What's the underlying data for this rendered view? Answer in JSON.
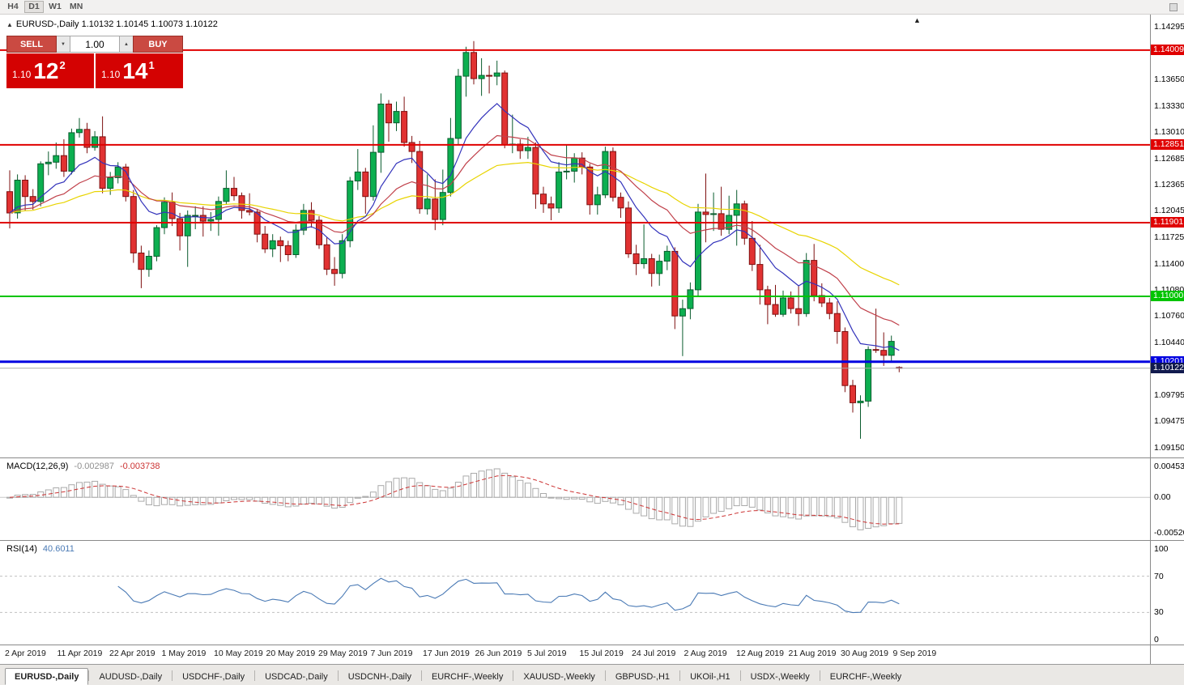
{
  "toolbar": {
    "timeframes": [
      {
        "label": "H4",
        "active": false
      },
      {
        "label": "D1",
        "active": true
      },
      {
        "label": "W1",
        "active": false
      },
      {
        "label": "MN",
        "active": false
      }
    ]
  },
  "chart": {
    "collapse_marker": "▲",
    "symbol": "EURUSD-,Daily",
    "ohlc_text": "1.10132 1.10145 1.10073 1.10122",
    "shift_marker": "▲"
  },
  "trade_panel": {
    "sell_label": "SELL",
    "buy_label": "BUY",
    "volume": "1.00",
    "spin_up": "▲",
    "spin_down": "▼",
    "bid": {
      "prefix": "1.10",
      "big": "12",
      "sup": "2"
    },
    "ask": {
      "prefix": "1.10",
      "big": "14",
      "sup": "1"
    }
  },
  "chart_data": {
    "type": "candlestick",
    "symbol": "EURUSD",
    "timeframe": "Daily",
    "ohlc_current": {
      "open": 1.10132,
      "high": 1.10145,
      "low": 1.10073,
      "close": 1.10122
    },
    "price_axis": {
      "max": 1.14295,
      "min": 1.0915,
      "ticks": [
        1.14295,
        1.1365,
        1.1333,
        1.1301,
        1.12685,
        1.12365,
        1.12045,
        1.11725,
        1.114,
        1.1108,
        1.1076,
        1.1044,
        1.09795,
        1.09475,
        1.0915
      ]
    },
    "colors": {
      "bull": "#0caf50",
      "bear": "#e13232",
      "bull_border": "#0a5c2e",
      "bear_border": "#7e1010",
      "background": "#ffffff"
    },
    "levels": [
      {
        "price": 1.14009,
        "label": "1.14009",
        "color": "#e00000",
        "width": 2
      },
      {
        "price": 1.12851,
        "label": "1.12851",
        "color": "#e00000",
        "width": 2
      },
      {
        "price": 1.11901,
        "label": "1.11901",
        "color": "#e00000",
        "width": 2
      },
      {
        "price": 1.11,
        "label": "1.11000",
        "color": "#00c400",
        "width": 2
      },
      {
        "price": 1.10201,
        "label": "1.10201",
        "color": "#0000e0",
        "width": 3
      }
    ],
    "current_price": {
      "value": 1.10122,
      "label": "1.10122",
      "line_color": "#a8a8a8",
      "tag_color": "#111a4e"
    },
    "moving_averages": [
      {
        "name": "ma-slow",
        "period": 44,
        "color": "#e8d400"
      },
      {
        "name": "ma-mid",
        "period": 21,
        "color": "#c0404a"
      },
      {
        "name": "ma-fast",
        "period": 10,
        "color": "#3333bb"
      }
    ],
    "x_labels": [
      "2 Apr 2019",
      "11 Apr 2019",
      "22 Apr 2019",
      "1 May 2019",
      "10 May 2019",
      "20 May 2019",
      "29 May 2019",
      "7 Jun 2019",
      "17 Jun 2019",
      "26 Jun 2019",
      "5 Jul 2019",
      "15 Jul 2019",
      "24 Jul 2019",
      "2 Aug 2019",
      "12 Aug 2019",
      "21 Aug 2019",
      "30 Aug 2019",
      "9 Sep 2019"
    ],
    "candles": [
      [
        1.1228,
        1.1254,
        1.1183,
        1.1202
      ],
      [
        1.1202,
        1.1249,
        1.1195,
        1.1242
      ],
      [
        1.1242,
        1.1248,
        1.1205,
        1.1222
      ],
      [
        1.1222,
        1.1231,
        1.1206,
        1.1216
      ],
      [
        1.1216,
        1.1265,
        1.121,
        1.1262
      ],
      [
        1.1262,
        1.1277,
        1.1248,
        1.1264
      ],
      [
        1.1264,
        1.1288,
        1.1256,
        1.1272
      ],
      [
        1.1272,
        1.1292,
        1.1246,
        1.1253
      ],
      [
        1.1253,
        1.1305,
        1.1249,
        1.13
      ],
      [
        1.13,
        1.1318,
        1.1294,
        1.1304
      ],
      [
        1.1304,
        1.1312,
        1.1275,
        1.1282
      ],
      [
        1.1282,
        1.1302,
        1.1278,
        1.1295
      ],
      [
        1.1295,
        1.132,
        1.1226,
        1.1232
      ],
      [
        1.1232,
        1.1252,
        1.1224,
        1.1245
      ],
      [
        1.1245,
        1.1264,
        1.1238,
        1.1258
      ],
      [
        1.1258,
        1.1262,
        1.1216,
        1.1222
      ],
      [
        1.1222,
        1.123,
        1.1141,
        1.1153
      ],
      [
        1.1153,
        1.1162,
        1.111,
        1.1133
      ],
      [
        1.1133,
        1.1156,
        1.1124,
        1.1149
      ],
      [
        1.1149,
        1.1187,
        1.1143,
        1.1184
      ],
      [
        1.1184,
        1.1221,
        1.1176,
        1.1215
      ],
      [
        1.1215,
        1.1227,
        1.1186,
        1.1195
      ],
      [
        1.1195,
        1.1202,
        1.1156,
        1.1174
      ],
      [
        1.1174,
        1.1205,
        1.1136,
        1.1199
      ],
      [
        1.1199,
        1.121,
        1.1182,
        1.1199
      ],
      [
        1.1199,
        1.121,
        1.1173,
        1.1192
      ],
      [
        1.1192,
        1.1203,
        1.118,
        1.1194
      ],
      [
        1.1194,
        1.1222,
        1.1174,
        1.1216
      ],
      [
        1.1216,
        1.1254,
        1.1212,
        1.1232
      ],
      [
        1.1232,
        1.1246,
        1.1217,
        1.1223
      ],
      [
        1.1223,
        1.1227,
        1.1195,
        1.1205
      ],
      [
        1.1205,
        1.1226,
        1.1199,
        1.1203
      ],
      [
        1.1203,
        1.1207,
        1.1166,
        1.1176
      ],
      [
        1.1176,
        1.1186,
        1.1153,
        1.1158
      ],
      [
        1.1158,
        1.1176,
        1.1148,
        1.1168
      ],
      [
        1.1168,
        1.1173,
        1.1142,
        1.1162
      ],
      [
        1.1162,
        1.1168,
        1.1143,
        1.1151
      ],
      [
        1.1151,
        1.1188,
        1.1147,
        1.1181
      ],
      [
        1.1181,
        1.1213,
        1.1175,
        1.1205
      ],
      [
        1.1205,
        1.1215,
        1.1184,
        1.1193
      ],
      [
        1.1193,
        1.1198,
        1.1158,
        1.1163
      ],
      [
        1.1163,
        1.1172,
        1.1126,
        1.1133
      ],
      [
        1.1133,
        1.1148,
        1.1113,
        1.1128
      ],
      [
        1.1128,
        1.1176,
        1.1122,
        1.1168
      ],
      [
        1.1168,
        1.1246,
        1.116,
        1.1241
      ],
      [
        1.1241,
        1.128,
        1.123,
        1.1252
      ],
      [
        1.1252,
        1.1257,
        1.1201,
        1.1222
      ],
      [
        1.1222,
        1.1309,
        1.1217,
        1.1276
      ],
      [
        1.1276,
        1.1348,
        1.1251,
        1.1335
      ],
      [
        1.1335,
        1.134,
        1.1289,
        1.1312
      ],
      [
        1.1312,
        1.1338,
        1.1302,
        1.1326
      ],
      [
        1.1326,
        1.1344,
        1.1283,
        1.1288
      ],
      [
        1.1288,
        1.1296,
        1.1263,
        1.1277
      ],
      [
        1.1277,
        1.129,
        1.1201,
        1.1207
      ],
      [
        1.1207,
        1.1249,
        1.12,
        1.1219
      ],
      [
        1.1219,
        1.1243,
        1.1181,
        1.1194
      ],
      [
        1.1194,
        1.1255,
        1.1187,
        1.1227
      ],
      [
        1.1227,
        1.1318,
        1.1222,
        1.1293
      ],
      [
        1.1293,
        1.1378,
        1.1285,
        1.1369
      ],
      [
        1.1369,
        1.1405,
        1.1344,
        1.1398
      ],
      [
        1.1398,
        1.1412,
        1.1359,
        1.1366
      ],
      [
        1.1366,
        1.1391,
        1.1345,
        1.137
      ],
      [
        1.137,
        1.1382,
        1.1348,
        1.1369
      ],
      [
        1.1369,
        1.1388,
        1.1358,
        1.1373
      ],
      [
        1.1373,
        1.1376,
        1.1281,
        1.1285
      ],
      [
        1.1285,
        1.1322,
        1.1275,
        1.1286
      ],
      [
        1.1286,
        1.1292,
        1.1268,
        1.1278
      ],
      [
        1.1278,
        1.1295,
        1.1268,
        1.1282
      ],
      [
        1.1282,
        1.1288,
        1.1207,
        1.1225
      ],
      [
        1.1225,
        1.1234,
        1.1202,
        1.1213
      ],
      [
        1.1213,
        1.1222,
        1.1193,
        1.1208
      ],
      [
        1.1208,
        1.1264,
        1.1202,
        1.1252
      ],
      [
        1.1252,
        1.1285,
        1.1243,
        1.1253
      ],
      [
        1.1253,
        1.1275,
        1.1239,
        1.1269
      ],
      [
        1.1269,
        1.1276,
        1.1249,
        1.1258
      ],
      [
        1.1258,
        1.1262,
        1.12,
        1.1212
      ],
      [
        1.1212,
        1.1234,
        1.12,
        1.1224
      ],
      [
        1.1224,
        1.1283,
        1.122,
        1.1277
      ],
      [
        1.1277,
        1.1282,
        1.1216,
        1.1221
      ],
      [
        1.1221,
        1.1227,
        1.1196,
        1.1208
      ],
      [
        1.1208,
        1.1216,
        1.1147,
        1.1152
      ],
      [
        1.1152,
        1.1163,
        1.1126,
        1.114
      ],
      [
        1.114,
        1.1188,
        1.1134,
        1.1146
      ],
      [
        1.1146,
        1.1152,
        1.1112,
        1.1128
      ],
      [
        1.1128,
        1.1151,
        1.1113,
        1.1143
      ],
      [
        1.1143,
        1.1162,
        1.1132,
        1.1155
      ],
      [
        1.1155,
        1.116,
        1.106,
        1.1076
      ],
      [
        1.1076,
        1.1096,
        1.1027,
        1.1085
      ],
      [
        1.1085,
        1.1117,
        1.1072,
        1.1108
      ],
      [
        1.1108,
        1.1213,
        1.1101,
        1.1203
      ],
      [
        1.1203,
        1.125,
        1.1166,
        1.12
      ],
      [
        1.12,
        1.1227,
        1.118,
        1.1201
      ],
      [
        1.1201,
        1.1234,
        1.1174,
        1.1182
      ],
      [
        1.1182,
        1.1223,
        1.1176,
        1.1199
      ],
      [
        1.1199,
        1.123,
        1.1162,
        1.1213
      ],
      [
        1.1213,
        1.1217,
        1.1163,
        1.1171
      ],
      [
        1.1171,
        1.1192,
        1.1131,
        1.1139
      ],
      [
        1.1139,
        1.1163,
        1.109,
        1.1108
      ],
      [
        1.1108,
        1.1113,
        1.1066,
        1.109
      ],
      [
        1.109,
        1.1114,
        1.1075,
        1.1078
      ],
      [
        1.1078,
        1.1107,
        1.1075,
        1.1098
      ],
      [
        1.1098,
        1.1106,
        1.1079,
        1.1085
      ],
      [
        1.1085,
        1.1113,
        1.1064,
        1.1079
      ],
      [
        1.1079,
        1.1153,
        1.1075,
        1.1144
      ],
      [
        1.1144,
        1.1164,
        1.1094,
        1.1101
      ],
      [
        1.1101,
        1.1116,
        1.1087,
        1.1092
      ],
      [
        1.1092,
        1.1098,
        1.1072,
        1.1079
      ],
      [
        1.1079,
        1.1094,
        1.1042,
        1.1057
      ],
      [
        1.1057,
        1.1062,
        1.0983,
        1.0991
      ],
      [
        1.0991,
        1.0998,
        1.0958,
        1.097
      ],
      [
        1.097,
        1.0979,
        1.0926,
        1.0972
      ],
      [
        1.0972,
        1.1039,
        1.0965,
        1.1035
      ],
      [
        1.1035,
        1.1085,
        1.1031,
        1.1034
      ],
      [
        1.1034,
        1.1056,
        1.1015,
        1.1028
      ],
      [
        1.1028,
        1.1052,
        1.1021,
        1.1045
      ],
      [
        1.10132,
        1.10145,
        1.10073,
        1.10122
      ]
    ],
    "macd": {
      "label": "MACD(12,26,9)",
      "main_value": "-0.002987",
      "signal_value": "-0.003738",
      "fast": 12,
      "slow": 26,
      "signal": 9,
      "ylim": [
        -0.005205,
        0.004536
      ],
      "ticks": [
        {
          "v": 0.004536,
          "t": "0.004536"
        },
        {
          "v": 0,
          "t": "0.00"
        },
        {
          "v": -0.005205,
          "t": "-0.005205"
        }
      ],
      "histogram_color": "#aaaaaa",
      "signal_color": "#cc3333"
    },
    "rsi": {
      "label": "RSI(14)",
      "value": "40.6011",
      "period": 14,
      "line_color": "#4a7ab5",
      "levels": [
        70,
        30
      ],
      "ticks": [
        {
          "v": 100,
          "t": "100"
        },
        {
          "v": 70,
          "t": "70"
        },
        {
          "v": 30,
          "t": "30"
        },
        {
          "v": 0,
          "t": "0"
        }
      ]
    }
  },
  "tabs": [
    {
      "label": "EURUSD-,Daily",
      "active": true
    },
    {
      "label": "AUDUSD-,Daily",
      "active": false
    },
    {
      "label": "USDCHF-,Daily",
      "active": false
    },
    {
      "label": "USDCAD-,Daily",
      "active": false
    },
    {
      "label": "USDCNH-,Daily",
      "active": false
    },
    {
      "label": "EURCHF-,Weekly",
      "active": false
    },
    {
      "label": "XAUUSD-,Weekly",
      "active": false
    },
    {
      "label": "GBPUSD-,H1",
      "active": false
    },
    {
      "label": "UKOil-,H1",
      "active": false
    },
    {
      "label": "USDX-,Weekly",
      "active": false
    },
    {
      "label": "EURCHF-,Weekly",
      "active": false
    }
  ]
}
